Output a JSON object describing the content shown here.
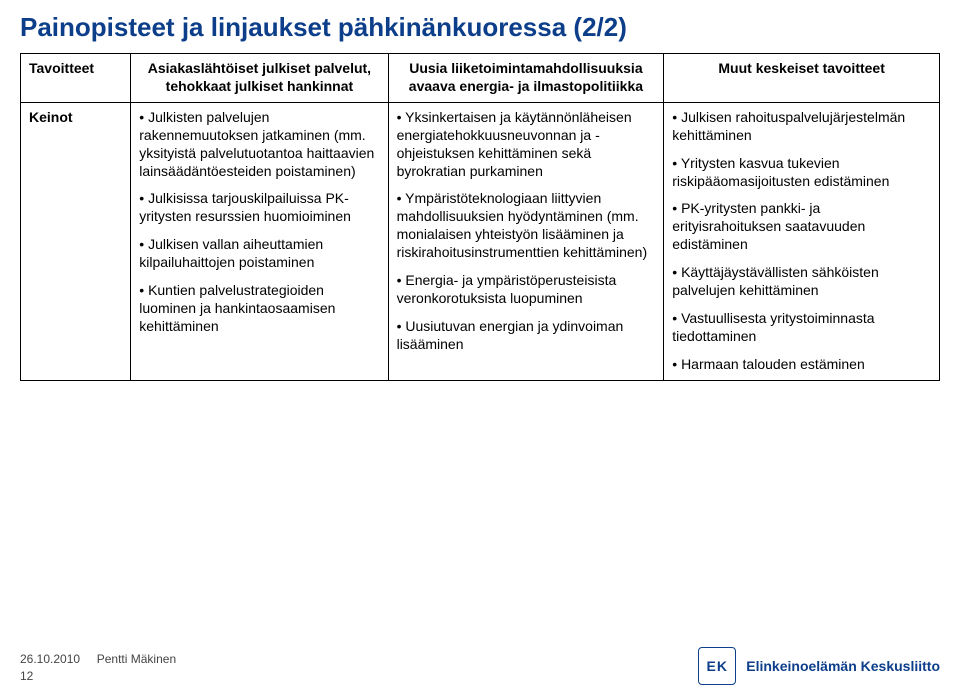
{
  "title": "Painopisteet ja linjaukset pähkinänkuoressa (2/2)",
  "colors": {
    "title": "#0d3e8a",
    "border": "#000000",
    "text": "#000000",
    "footer_text": "#444444",
    "logo_blue": "#0d3e8a",
    "background": "#ffffff"
  },
  "header_row": {
    "col0": "Tavoitteet",
    "col1": "Asiakaslähtöiset julkiset palvelut, tehokkaat julkiset hankinnat",
    "col2": "Uusia liiketoimintamahdollisuuksia avaava energia- ja ilmastopolitiikka",
    "col3": "Muut keskeiset tavoitteet"
  },
  "body_row": {
    "label": "Keinot",
    "col1": [
      "Julkisten palvelujen rakennemuutoksen jatkaminen (mm. yksityistä palvelutuotantoa haittaavien lainsäädäntöesteiden poistaminen)",
      "Julkisissa tarjouskilpailuissa PK-yritysten resurssien huomioiminen",
      "Julkisen vallan aiheuttamien kilpailuhaittojen poistaminen",
      "Kuntien palvelustrategioiden luominen ja hankintaosaamisen kehittäminen"
    ],
    "col2": [
      "Yksinkertaisen ja käytännönläheisen energiatehokkuusneuvonnan ja -ohjeistuksen kehittäminen sekä byrokratian purkaminen",
      "Ympäristöteknologiaan liittyvien mahdollisuuksien hyödyntäminen (mm. monialaisen yhteistyön lisääminen ja riskirahoitusinstrumenttien kehittäminen)",
      "Energia- ja ympäristöperusteisista veronkorotuksista luopuminen",
      "Uusiutuvan energian ja ydinvoiman lisääminen"
    ],
    "col3": [
      "Julkisen rahoituspalvelujärjestelmän kehittäminen",
      "Yritysten kasvua tukevien riskipääomasijoitusten edistäminen",
      "PK-yritysten pankki- ja erityisrahoituksen saatavuuden edistäminen",
      "Käyttäjäystävällisten sähköisten palvelujen kehittäminen",
      "Vastuullisesta yritystoiminnasta tiedottaminen",
      "Harmaan talouden estäminen"
    ]
  },
  "footer": {
    "date": "26.10.2010",
    "author": "Pentti Mäkinen",
    "page": "12",
    "org_mark": "EK",
    "org_name": "Elinkeinoelämän Keskusliitto"
  }
}
